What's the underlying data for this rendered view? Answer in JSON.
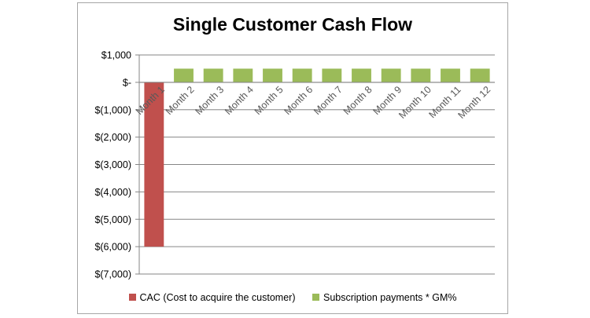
{
  "chart_data": {
    "type": "bar",
    "title": "Single Customer Cash Flow",
    "xlabel": "",
    "ylabel": "",
    "categories": [
      "Month 1",
      "Month 2",
      "Month 3",
      "Month 4",
      "Month 5",
      "Month 6",
      "Month 7",
      "Month 8",
      "Month 9",
      "Month 10",
      "Month 11",
      "Month 12"
    ],
    "series": [
      {
        "name": "CAC (Cost to acquire the customer)",
        "color": "#c0504d",
        "values": [
          -6000,
          0,
          0,
          0,
          0,
          0,
          0,
          0,
          0,
          0,
          0,
          0
        ]
      },
      {
        "name": "Subscription payments * GM%",
        "color": "#9bbb59",
        "values": [
          0,
          500,
          500,
          500,
          500,
          500,
          500,
          500,
          500,
          500,
          500,
          500
        ]
      }
    ],
    "ylim": [
      -7000,
      1000
    ],
    "y_ticks": [
      1000,
      0,
      -1000,
      -2000,
      -3000,
      -4000,
      -5000,
      -6000,
      -7000
    ],
    "y_tick_labels": [
      "$1,000",
      "$-",
      "$(1,000)",
      "$(2,000)",
      "$(3,000)",
      "$(4,000)",
      "$(5,000)",
      "$(6,000)",
      "$(7,000)"
    ],
    "grid": true,
    "legend_position": "bottom",
    "stacked": true
  }
}
